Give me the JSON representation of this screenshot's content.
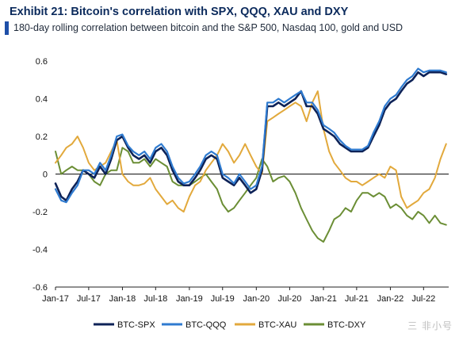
{
  "header": {
    "title": "Exhibit 21: Bitcoin's correlation with SPX, QQQ, XAU and DXY",
    "subtitle": "180-day rolling correlation between bitcoin and the S&P 500, Nasdaq 100, gold and USD"
  },
  "watermark": "三 非小号",
  "colors": {
    "BTC-SPX": "#0d2257",
    "BTC-QQQ": "#2f7bd0",
    "BTC-XAU": "#e2a93c",
    "BTC-DXY": "#6b8e35"
  },
  "chart_data": {
    "type": "line",
    "title": "Exhibit 21: Bitcoin's correlation with SPX, QQQ, XAU and DXY",
    "subtitle": "180-day rolling correlation between bitcoin and the S&P 500, Nasdaq 100, gold and USD",
    "xlabel": "",
    "ylabel": "",
    "ylim": [
      -0.6,
      0.6
    ],
    "yticks": [
      -0.6,
      -0.4,
      -0.2,
      0,
      0.2,
      0.4,
      0.6
    ],
    "ytick_labels": [
      "-0.6",
      "-0.4",
      "-0.2",
      "0",
      "0.2",
      "0.4",
      "0.6"
    ],
    "xlim": [
      "2017-01-01",
      "2022-11-15"
    ],
    "xticks": [
      "2017-01-01",
      "2017-07-01",
      "2018-01-01",
      "2018-07-01",
      "2019-01-01",
      "2019-07-01",
      "2020-01-01",
      "2020-07-01",
      "2021-01-01",
      "2021-07-01",
      "2022-01-01",
      "2022-07-01"
    ],
    "xtick_labels": [
      "Jan-17",
      "Jul-17",
      "Jan-18",
      "Jul-18",
      "Jan-19",
      "Jul-19",
      "Jan-20",
      "Jul-20",
      "Jan-21",
      "Jul-21",
      "Jan-22",
      "Jul-22"
    ],
    "grid": false,
    "zero_line": true,
    "legend_position": "bottom",
    "series": [
      {
        "name": "BTC-SPX",
        "x": [
          "2017-01-01",
          "2017-02-01",
          "2017-03-01",
          "2017-04-01",
          "2017-05-01",
          "2017-06-01",
          "2017-07-01",
          "2017-08-01",
          "2017-09-01",
          "2017-10-01",
          "2017-11-01",
          "2017-12-01",
          "2018-01-01",
          "2018-02-01",
          "2018-03-01",
          "2018-04-01",
          "2018-05-01",
          "2018-06-01",
          "2018-07-01",
          "2018-08-01",
          "2018-09-01",
          "2018-10-01",
          "2018-11-01",
          "2018-12-01",
          "2019-01-01",
          "2019-02-01",
          "2019-03-01",
          "2019-04-01",
          "2019-05-01",
          "2019-06-01",
          "2019-07-01",
          "2019-08-01",
          "2019-09-01",
          "2019-10-01",
          "2019-11-01",
          "2019-12-01",
          "2020-01-01",
          "2020-02-01",
          "2020-03-01",
          "2020-04-01",
          "2020-05-01",
          "2020-06-01",
          "2020-07-01",
          "2020-08-01",
          "2020-09-01",
          "2020-10-01",
          "2020-11-01",
          "2020-12-01",
          "2021-01-01",
          "2021-02-01",
          "2021-03-01",
          "2021-04-01",
          "2021-05-01",
          "2021-06-01",
          "2021-07-01",
          "2021-08-01",
          "2021-09-01",
          "2021-10-01",
          "2021-11-01",
          "2021-12-01",
          "2022-01-01",
          "2022-02-01",
          "2022-03-01",
          "2022-04-01",
          "2022-05-01",
          "2022-06-01",
          "2022-07-01",
          "2022-08-01",
          "2022-09-01",
          "2022-10-01",
          "2022-11-01"
        ],
        "values": [
          -0.05,
          -0.12,
          -0.14,
          -0.08,
          -0.04,
          0.02,
          0.0,
          -0.02,
          0.04,
          0.0,
          0.08,
          0.18,
          0.2,
          0.14,
          0.1,
          0.08,
          0.1,
          0.06,
          0.12,
          0.14,
          0.1,
          0.02,
          -0.04,
          -0.06,
          -0.06,
          -0.02,
          0.02,
          0.08,
          0.1,
          0.08,
          -0.02,
          -0.04,
          -0.06,
          -0.02,
          -0.06,
          -0.1,
          -0.08,
          0.02,
          0.36,
          0.36,
          0.38,
          0.36,
          0.38,
          0.4,
          0.44,
          0.36,
          0.36,
          0.32,
          0.24,
          0.22,
          0.2,
          0.16,
          0.14,
          0.12,
          0.12,
          0.12,
          0.14,
          0.2,
          0.26,
          0.34,
          0.38,
          0.4,
          0.44,
          0.48,
          0.5,
          0.54,
          0.52,
          0.54,
          0.54,
          0.54,
          0.53
        ]
      },
      {
        "name": "BTC-QQQ",
        "x": [
          "2017-01-01",
          "2017-02-01",
          "2017-03-01",
          "2017-04-01",
          "2017-05-01",
          "2017-06-01",
          "2017-07-01",
          "2017-08-01",
          "2017-09-01",
          "2017-10-01",
          "2017-11-01",
          "2017-12-01",
          "2018-01-01",
          "2018-02-01",
          "2018-03-01",
          "2018-04-01",
          "2018-05-01",
          "2018-06-01",
          "2018-07-01",
          "2018-08-01",
          "2018-09-01",
          "2018-10-01",
          "2018-11-01",
          "2018-12-01",
          "2019-01-01",
          "2019-02-01",
          "2019-03-01",
          "2019-04-01",
          "2019-05-01",
          "2019-06-01",
          "2019-07-01",
          "2019-08-01",
          "2019-09-01",
          "2019-10-01",
          "2019-11-01",
          "2019-12-01",
          "2020-01-01",
          "2020-02-01",
          "2020-03-01",
          "2020-04-01",
          "2020-05-01",
          "2020-06-01",
          "2020-07-01",
          "2020-08-01",
          "2020-09-01",
          "2020-10-01",
          "2020-11-01",
          "2020-12-01",
          "2021-01-01",
          "2021-02-01",
          "2021-03-01",
          "2021-04-01",
          "2021-05-01",
          "2021-06-01",
          "2021-07-01",
          "2021-08-01",
          "2021-09-01",
          "2021-10-01",
          "2021-11-01",
          "2021-12-01",
          "2022-01-01",
          "2022-02-01",
          "2022-03-01",
          "2022-04-01",
          "2022-05-01",
          "2022-06-01",
          "2022-07-01",
          "2022-08-01",
          "2022-09-01",
          "2022-10-01",
          "2022-11-01"
        ],
        "values": [
          -0.08,
          -0.14,
          -0.15,
          -0.1,
          -0.06,
          0.02,
          0.02,
          0.0,
          0.06,
          0.02,
          0.1,
          0.2,
          0.21,
          0.15,
          0.12,
          0.1,
          0.12,
          0.08,
          0.14,
          0.16,
          0.12,
          0.04,
          -0.02,
          -0.05,
          -0.04,
          0.0,
          0.04,
          0.1,
          0.12,
          0.1,
          0.0,
          -0.02,
          -0.05,
          0.0,
          -0.04,
          -0.08,
          -0.06,
          0.04,
          0.38,
          0.38,
          0.4,
          0.38,
          0.4,
          0.42,
          0.44,
          0.38,
          0.38,
          0.34,
          0.26,
          0.24,
          0.22,
          0.18,
          0.15,
          0.13,
          0.13,
          0.13,
          0.15,
          0.22,
          0.28,
          0.36,
          0.4,
          0.42,
          0.46,
          0.5,
          0.52,
          0.56,
          0.54,
          0.55,
          0.55,
          0.55,
          0.54
        ]
      },
      {
        "name": "BTC-XAU",
        "x": [
          "2017-01-01",
          "2017-02-01",
          "2017-03-01",
          "2017-04-01",
          "2017-05-01",
          "2017-06-01",
          "2017-07-01",
          "2017-08-01",
          "2017-09-01",
          "2017-10-01",
          "2017-11-01",
          "2017-12-01",
          "2018-01-01",
          "2018-02-01",
          "2018-03-01",
          "2018-04-01",
          "2018-05-01",
          "2018-06-01",
          "2018-07-01",
          "2018-08-01",
          "2018-09-01",
          "2018-10-01",
          "2018-11-01",
          "2018-12-01",
          "2019-01-01",
          "2019-02-01",
          "2019-03-01",
          "2019-04-01",
          "2019-05-01",
          "2019-06-01",
          "2019-07-01",
          "2019-08-01",
          "2019-09-01",
          "2019-10-01",
          "2019-11-01",
          "2019-12-01",
          "2020-01-01",
          "2020-02-01",
          "2020-03-01",
          "2020-04-01",
          "2020-05-01",
          "2020-06-01",
          "2020-07-01",
          "2020-08-01",
          "2020-09-01",
          "2020-10-01",
          "2020-11-01",
          "2020-12-01",
          "2021-01-01",
          "2021-02-01",
          "2021-03-01",
          "2021-04-01",
          "2021-05-01",
          "2021-06-01",
          "2021-07-01",
          "2021-08-01",
          "2021-09-01",
          "2021-10-01",
          "2021-11-01",
          "2021-12-01",
          "2022-01-01",
          "2022-02-01",
          "2022-03-01",
          "2022-04-01",
          "2022-05-01",
          "2022-06-01",
          "2022-07-01",
          "2022-08-01",
          "2022-09-01",
          "2022-10-01",
          "2022-11-01"
        ],
        "values": [
          0.06,
          0.1,
          0.14,
          0.16,
          0.2,
          0.14,
          0.06,
          0.02,
          0.04,
          0.06,
          0.12,
          0.18,
          0.0,
          -0.04,
          -0.06,
          -0.06,
          -0.05,
          -0.02,
          -0.08,
          -0.12,
          -0.16,
          -0.14,
          -0.18,
          -0.2,
          -0.12,
          -0.06,
          -0.04,
          0.02,
          0.06,
          0.1,
          0.16,
          0.12,
          0.06,
          0.1,
          0.16,
          0.1,
          0.04,
          0.0,
          0.28,
          0.3,
          0.32,
          0.34,
          0.36,
          0.38,
          0.36,
          0.28,
          0.38,
          0.44,
          0.24,
          0.12,
          0.06,
          0.02,
          -0.02,
          -0.04,
          -0.04,
          -0.06,
          -0.04,
          -0.02,
          0.0,
          -0.02,
          0.04,
          0.02,
          -0.12,
          -0.18,
          -0.16,
          -0.14,
          -0.1,
          -0.08,
          -0.02,
          0.08,
          0.16
        ]
      },
      {
        "name": "BTC-DXY",
        "x": [
          "2017-01-01",
          "2017-02-01",
          "2017-03-01",
          "2017-04-01",
          "2017-05-01",
          "2017-06-01",
          "2017-07-01",
          "2017-08-01",
          "2017-09-01",
          "2017-10-01",
          "2017-11-01",
          "2017-12-01",
          "2018-01-01",
          "2018-02-01",
          "2018-03-01",
          "2018-04-01",
          "2018-05-01",
          "2018-06-01",
          "2018-07-01",
          "2018-08-01",
          "2018-09-01",
          "2018-10-01",
          "2018-11-01",
          "2018-12-01",
          "2019-01-01",
          "2019-02-01",
          "2019-03-01",
          "2019-04-01",
          "2019-05-01",
          "2019-06-01",
          "2019-07-01",
          "2019-08-01",
          "2019-09-01",
          "2019-10-01",
          "2019-11-01",
          "2019-12-01",
          "2020-01-01",
          "2020-02-01",
          "2020-03-01",
          "2020-04-01",
          "2020-05-01",
          "2020-06-01",
          "2020-07-01",
          "2020-08-01",
          "2020-09-01",
          "2020-10-01",
          "2020-11-01",
          "2020-12-01",
          "2021-01-01",
          "2021-02-01",
          "2021-03-01",
          "2021-04-01",
          "2021-05-01",
          "2021-06-01",
          "2021-07-01",
          "2021-08-01",
          "2021-09-01",
          "2021-10-01",
          "2021-11-01",
          "2021-12-01",
          "2022-01-01",
          "2022-02-01",
          "2022-03-01",
          "2022-04-01",
          "2022-05-01",
          "2022-06-01",
          "2022-07-01",
          "2022-08-01",
          "2022-09-01",
          "2022-10-01",
          "2022-11-01"
        ],
        "values": [
          0.12,
          0.0,
          0.02,
          0.04,
          0.02,
          0.02,
          0.0,
          -0.04,
          -0.06,
          0.0,
          0.02,
          0.02,
          0.14,
          0.12,
          0.06,
          0.06,
          0.08,
          0.04,
          0.08,
          0.06,
          0.04,
          -0.04,
          -0.06,
          -0.06,
          -0.06,
          -0.04,
          -0.02,
          0.0,
          -0.04,
          -0.08,
          -0.16,
          -0.2,
          -0.18,
          -0.14,
          -0.1,
          -0.06,
          -0.02,
          0.08,
          0.04,
          -0.04,
          -0.02,
          -0.01,
          -0.04,
          -0.1,
          -0.18,
          -0.24,
          -0.3,
          -0.34,
          -0.36,
          -0.3,
          -0.24,
          -0.22,
          -0.18,
          -0.2,
          -0.14,
          -0.1,
          -0.1,
          -0.12,
          -0.1,
          -0.12,
          -0.18,
          -0.16,
          -0.18,
          -0.22,
          -0.24,
          -0.2,
          -0.22,
          -0.26,
          -0.22,
          -0.26,
          -0.27
        ]
      }
    ]
  }
}
